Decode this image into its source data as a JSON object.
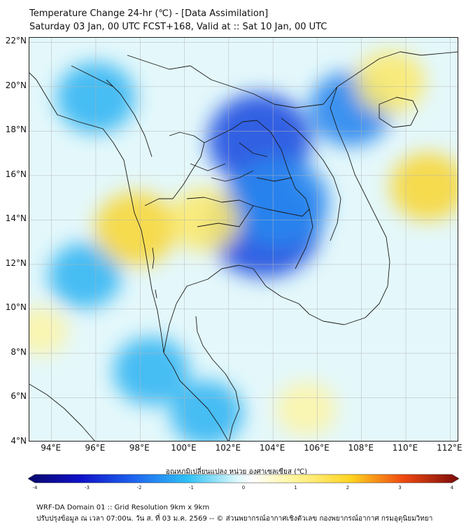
{
  "title": {
    "line1": "Temperature Change 24-hr (℃) - [Data Assimilation]",
    "line2": "Saturday 03 Jan, 00 UTC FCST+168, Valid at :: Sat 10 Jan, 00 UTC"
  },
  "map": {
    "lat_range": [
      4,
      22.2
    ],
    "lon_range": [
      93,
      112.4
    ],
    "lat_labels": [
      "22°N",
      "20°N",
      "18°N",
      "16°N",
      "14°N",
      "12°N",
      "10°N",
      "8°N",
      "6°N",
      "4°N"
    ],
    "lat_values": [
      22,
      20,
      18,
      16,
      14,
      12,
      10,
      8,
      6,
      4
    ],
    "lon_labels": [
      "94°E",
      "96°E",
      "98°E",
      "100°E",
      "102°E",
      "104°E",
      "106°E",
      "108°E",
      "110°E",
      "112°E"
    ],
    "lon_values": [
      94,
      96,
      98,
      100,
      102,
      104,
      106,
      108,
      110,
      112
    ],
    "field": [
      {
        "name": "cold-core-cambodia",
        "lon": 103.6,
        "lat": 13.7,
        "value": -2.3
      },
      {
        "name": "cold-core-laos",
        "lon": 103.4,
        "lat": 17.6,
        "value": -2.0
      },
      {
        "name": "cold-thailand-east",
        "lon": 104.3,
        "lat": 14.8,
        "value": -1.8
      },
      {
        "name": "cold-gulf-of-tonkin",
        "lon": 107.5,
        "lat": 19.0,
        "value": -1.3
      },
      {
        "name": "cold-myanmar-north",
        "lon": 96.0,
        "lat": 19.5,
        "value": -1.2
      },
      {
        "name": "cold-andaman",
        "lon": 95.5,
        "lat": 11.5,
        "value": -1.0
      },
      {
        "name": "cold-malay-north",
        "lon": 98.5,
        "lat": 7.2,
        "value": -1.1
      },
      {
        "name": "cold-malay-south",
        "lon": 101.0,
        "lat": 5.3,
        "value": -1.0
      },
      {
        "name": "warm-myanmar-south",
        "lon": 97.8,
        "lat": 13.6,
        "value": 1.3
      },
      {
        "name": "warm-thailand-central",
        "lon": 100.9,
        "lat": 14.0,
        "value": 0.9
      },
      {
        "name": "warm-vietnam-north",
        "lon": 109.3,
        "lat": 20.2,
        "value": 0.9
      },
      {
        "name": "warm-vietnam-central-sea",
        "lon": 111.0,
        "lat": 15.5,
        "value": 1.1
      },
      {
        "name": "warm-south-china-sea",
        "lon": 105.5,
        "lat": 5.5,
        "value": 0.6
      },
      {
        "name": "warm-far-southwest",
        "lon": 93.5,
        "lat": 9.0,
        "value": 0.4
      }
    ]
  },
  "colorbar": {
    "label": "อุณหภูมิเปลี่ยนแปลง หน่วย องศาเซลเซียส (℃)",
    "min": -4,
    "max": 4,
    "tick_values": [
      -4,
      -3,
      -2,
      -1,
      0,
      1,
      2,
      3,
      4
    ],
    "tick_labels": [
      "-4",
      "-3",
      "-2",
      "-1",
      "0",
      "1",
      "2",
      "3",
      "4"
    ]
  },
  "footer": {
    "line1": "WRF-DA Domain 01 :: Grid Resolution 9km x 9km",
    "line2": "ปรับปรุงข้อมูล ณ เวลา 07:00น. วัน ส. ที่ 03 ม.ค. 2569 -- © ส่วนพยากรณ์อากาศเชิงตัวเลข กองพยากรณ์อากาศ กรมอุตุนิยมวิทยา"
  }
}
